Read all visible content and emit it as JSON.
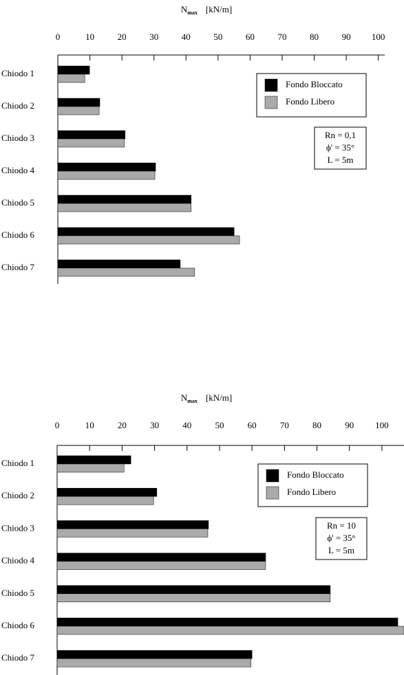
{
  "chart_data": [
    {
      "type": "hbar",
      "xlabel": "N",
      "xlabel_sub": "max",
      "xlabel_unit": "[kN/m]",
      "categories": [
        "Chiodo 1",
        "Chiodo 2",
        "Chiodo 3",
        "Chiodo 4",
        "Chiodo 5",
        "Chiodo 6",
        "Chiodo 7"
      ],
      "series": [
        {
          "name": "Fondo Bloccato",
          "color": "#000000",
          "values": [
            9.9,
            13.1,
            21,
            30.5,
            41.6,
            55,
            38.2
          ]
        },
        {
          "name": "Fondo Libero",
          "color": "#aaaaaa",
          "values": [
            8.4,
            12.9,
            20.8,
            30.3,
            41.6,
            56.7,
            42.7
          ]
        }
      ],
      "xlim": [
        0,
        102
      ],
      "xticks": [
        0,
        10,
        20,
        30,
        40,
        50,
        60,
        70,
        80,
        90,
        100
      ],
      "annotations": [
        "Rn = 0,1",
        "ϕ' = 35°",
        "L = 5m"
      ],
      "legend": "upper right"
    },
    {
      "type": "hbar",
      "xlabel": "N",
      "xlabel_sub": "max",
      "xlabel_unit": "[kN/m]",
      "categories": [
        "Chiodo 1",
        "Chiodo 2",
        "Chiodo 3",
        "Chiodo 4",
        "Chiodo 5",
        "Chiodo 6",
        "Chiodo 7"
      ],
      "series": [
        {
          "name": "Fondo Bloccato",
          "color": "#000000",
          "values": [
            22.7,
            30.7,
            46.6,
            64.2,
            84.1,
            104.9,
            60
          ]
        },
        {
          "name": "Fondo Libero",
          "color": "#aaaaaa",
          "values": [
            20.6,
            29.7,
            46.4,
            64.2,
            84.1,
            106.8,
            59.7
          ]
        }
      ],
      "xlim": [
        0,
        106.8
      ],
      "xticks": [
        0,
        10,
        20,
        30,
        40,
        50,
        60,
        70,
        80,
        90,
        100
      ],
      "annotations": [
        "Rn = 10",
        "ϕ' = 35°",
        "L = 5m"
      ],
      "legend": "upper right"
    }
  ]
}
